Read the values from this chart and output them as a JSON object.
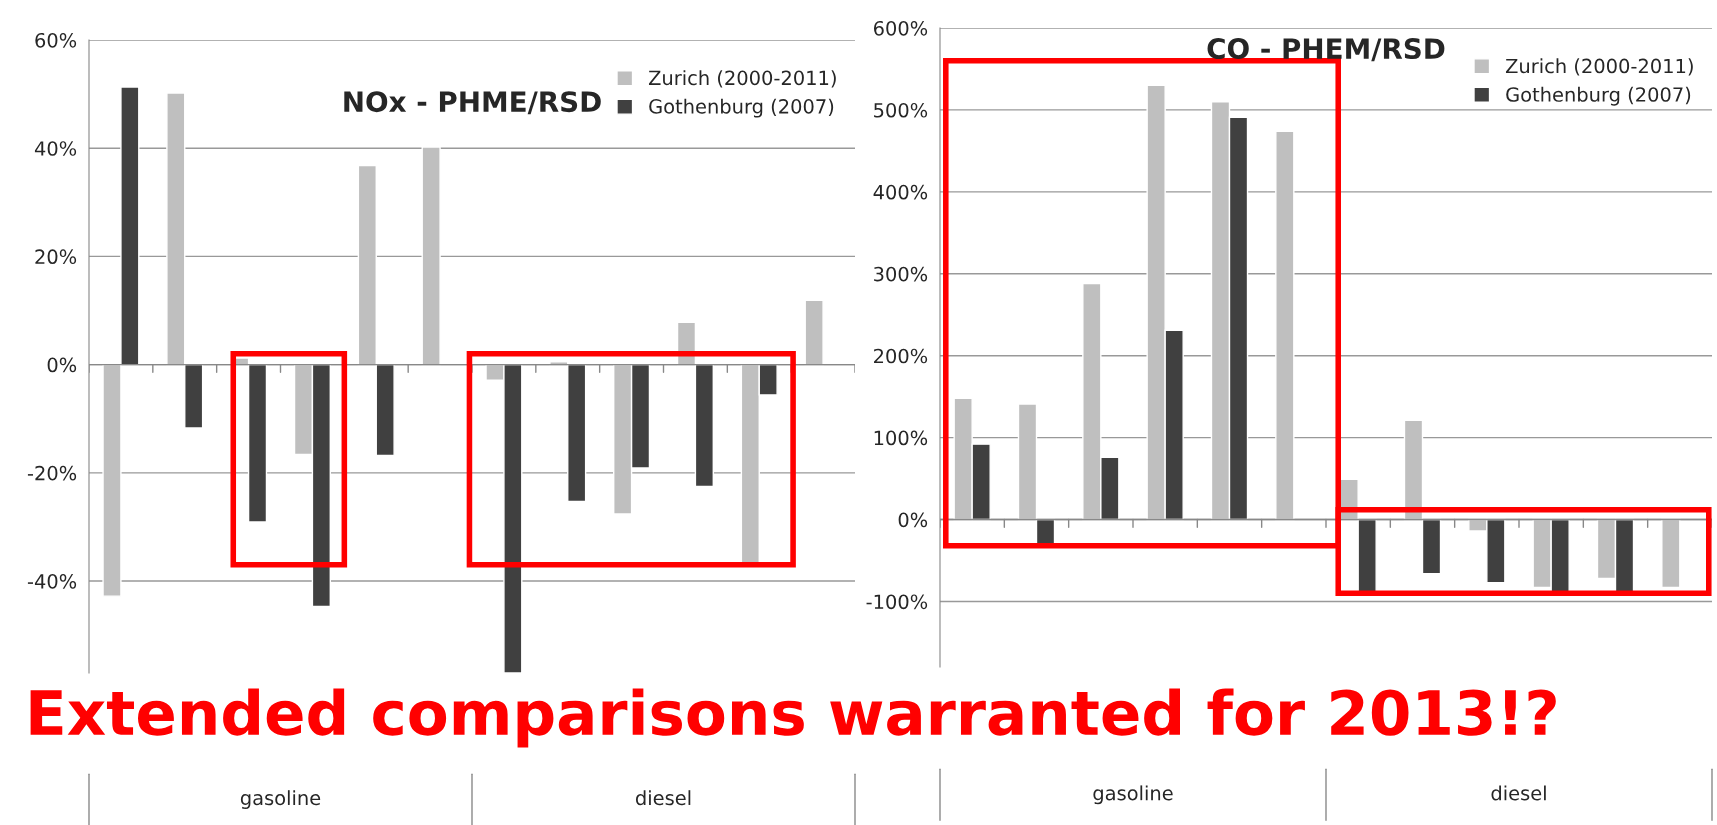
{
  "chart_data": [
    {
      "type": "bar",
      "title": "NOx - PHME/RSD",
      "categories": [
        null,
        null,
        null,
        null,
        null,
        null,
        null,
        null,
        null,
        null,
        null,
        null
      ],
      "series": [
        {
          "name": "Zurich (2000-2011)",
          "color": "#bfbfbf",
          "values": [
            -42.8,
            50.2,
            1.2,
            -16.6,
            36.8,
            40.2,
            -2.9,
            0.5,
            -27.6,
            7.8,
            -36.6,
            11.9
          ]
        },
        {
          "name": "Gothenburg (2007)",
          "color": "#404040",
          "values": [
            51.3,
            -11.7,
            -29.1,
            -44.7,
            -16.8,
            null,
            -57,
            -25.3,
            -19.1,
            -22.5,
            -5.6,
            null
          ]
        }
      ],
      "ylim": [
        -57,
        60
      ],
      "yticks": [
        {
          "value": -40,
          "label": "-40%"
        },
        {
          "value": -20,
          "label": "-20%"
        },
        {
          "value": 0,
          "label": "0%"
        },
        {
          "value": 20,
          "label": "20%"
        },
        {
          "value": 40,
          "label": "40%"
        },
        {
          "value": 60,
          "label": "60%"
        }
      ],
      "grid": "y",
      "legend": "top right",
      "annotations": [
        "gasoline",
        "diesel",
        "Extended comparisons warranted for 2013!?"
      ]
    },
    {
      "type": "bar",
      "title": "CO - PHEM/RSD",
      "categories": [
        null,
        null,
        null,
        null,
        null,
        null,
        null,
        null,
        null,
        null,
        null,
        null
      ],
      "series": [
        {
          "name": "Zurich (2000-2011)",
          "color": "#bfbfbf",
          "values": [
            148,
            141,
            288,
            530,
            510,
            474,
            49,
            121,
            -14,
            -83,
            -72,
            -83
          ]
        },
        {
          "name": "Gothenburg (2007)",
          "color": "#404040",
          "values": [
            92,
            -30,
            76,
            231,
            491,
            null,
            -88,
            -66,
            -77,
            -88,
            -88,
            null
          ]
        }
      ],
      "ylim": [
        -180,
        600
      ],
      "yticks": [
        {
          "value": -100,
          "label": "-100%"
        },
        {
          "value": 0,
          "label": "0%"
        },
        {
          "value": 100,
          "label": "100%"
        },
        {
          "value": 200,
          "label": "200%"
        },
        {
          "value": 300,
          "label": "300%"
        },
        {
          "value": 400,
          "label": "400%"
        },
        {
          "value": 500,
          "label": "500%"
        },
        {
          "value": 600,
          "label": "600%"
        }
      ],
      "grid": "y",
      "legend": "top right",
      "annotations": [
        "gasoline",
        "diesel"
      ]
    }
  ]
}
